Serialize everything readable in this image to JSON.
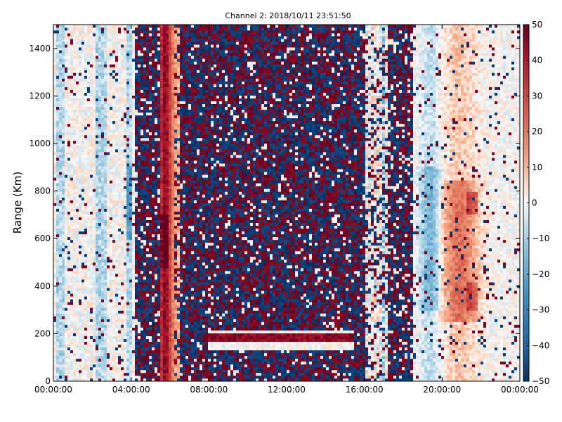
{
  "chart_data": {
    "type": "heatmap",
    "title": "Channel 2: 2018/10/11 23:51:50",
    "xlabel": "",
    "ylabel": "Range (Km)",
    "x_ticks": [
      "00:00:00",
      "04:00:00",
      "08:00:00",
      "12:00:00",
      "16:00:00",
      "20:00:00",
      "00:00:00"
    ],
    "y_ticks": [
      "0",
      "200",
      "400",
      "600",
      "800",
      "1000",
      "1200",
      "1400"
    ],
    "ylim": [
      0,
      1500
    ],
    "xlim_hours": [
      0,
      24
    ],
    "colorbar": {
      "colormap": "RdBu_r",
      "range": [
        -50,
        50
      ],
      "ticks": [
        "50",
        "40",
        "30",
        "20",
        "10",
        "0",
        "−10",
        "−20",
        "−30",
        "−40",
        "−50"
      ]
    },
    "regions": [
      {
        "from_hour": 0.0,
        "to_hour": 4.2,
        "pattern": "quiet, near-zero values with sparse noise speckle; light blue streaks"
      },
      {
        "from_hour": 4.2,
        "to_hour": 5.5,
        "pattern": "strong alternating noise (±50)"
      },
      {
        "from_hour": 5.5,
        "to_hour": 6.5,
        "pattern": "positive echo band, strongest (~40-50) near 5.6-6.0 h"
      },
      {
        "from_hour": 6.5,
        "to_hour": 16.0,
        "pattern": "dense random noise (±50)"
      },
      {
        "from_hour": 8.0,
        "to_hour": 15.5,
        "pattern": "near-zero horizontal bands at ~150 km and ~210 km"
      },
      {
        "from_hour": 16.0,
        "to_hour": 17.2,
        "pattern": "mixed light values"
      },
      {
        "from_hour": 17.2,
        "to_hour": 18.5,
        "pattern": "strong alternating noise (±50)"
      },
      {
        "from_hour": 18.5,
        "to_hour": 24.0,
        "pattern": "quiet; blue (~-15) near 19.5 h, red (~15-30) near 21 h at 300-800 km"
      }
    ],
    "grid": false,
    "legend": "none"
  }
}
